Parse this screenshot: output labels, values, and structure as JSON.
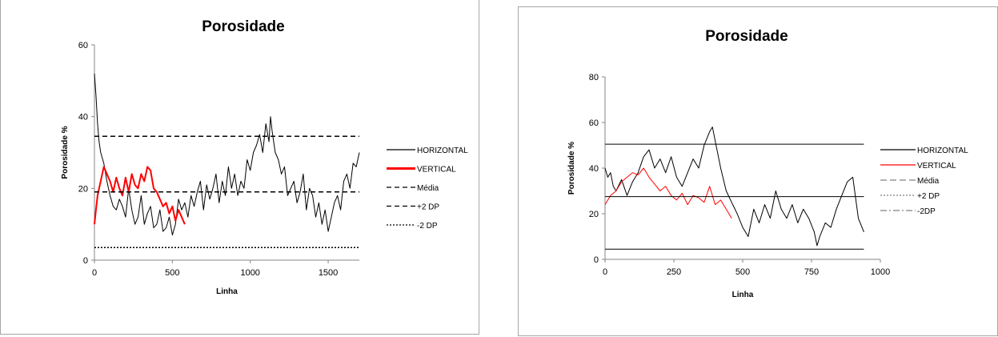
{
  "chart_data": [
    {
      "type": "line",
      "title": "Porosidade",
      "xlabel": "Linha",
      "ylabel": "Porosidade %",
      "xlim": [
        0,
        1700
      ],
      "ylim": [
        0,
        60
      ],
      "xticks": [
        "0",
        "500",
        "1000",
        "1500"
      ],
      "yticks": [
        "0",
        "20",
        "40",
        "60"
      ],
      "grid": false,
      "legend_position": "right",
      "series": [
        {
          "name": "HORIZONTAL",
          "color": "#000000",
          "dash": "solid",
          "width": 1,
          "x": [
            0,
            10,
            20,
            30,
            40,
            60,
            80,
            100,
            120,
            140,
            160,
            180,
            200,
            220,
            240,
            260,
            280,
            300,
            320,
            340,
            360,
            380,
            400,
            420,
            440,
            460,
            480,
            500,
            520,
            540,
            560,
            580,
            600,
            620,
            640,
            660,
            680,
            700,
            720,
            740,
            760,
            780,
            800,
            820,
            840,
            860,
            880,
            900,
            920,
            940,
            960,
            980,
            1000,
            1020,
            1040,
            1060,
            1080,
            1100,
            1120,
            1130,
            1140,
            1160,
            1180,
            1200,
            1220,
            1240,
            1260,
            1280,
            1300,
            1320,
            1340,
            1360,
            1380,
            1400,
            1420,
            1440,
            1460,
            1480,
            1500,
            1520,
            1540,
            1560,
            1580,
            1600,
            1620,
            1640,
            1660,
            1680,
            1700
          ],
          "y": [
            52,
            46,
            38,
            33,
            30,
            27,
            22,
            18,
            15,
            14,
            17,
            15,
            12,
            20,
            14,
            10,
            12,
            18,
            10,
            13,
            15,
            9,
            10,
            14,
            8,
            9,
            12,
            7,
            10,
            17,
            14,
            16,
            12,
            18,
            15,
            19,
            22,
            14,
            21,
            17,
            20,
            24,
            16,
            22,
            18,
            26,
            20,
            24,
            18,
            22,
            20,
            28,
            25,
            30,
            32,
            35,
            30,
            38,
            33,
            40,
            36,
            30,
            28,
            24,
            26,
            18,
            20,
            22,
            16,
            19,
            24,
            14,
            20,
            18,
            12,
            16,
            10,
            14,
            8,
            12,
            16,
            18,
            14,
            22,
            24,
            20,
            27,
            26,
            30
          ]
        },
        {
          "name": "VERTICAL",
          "color": "#ff0000",
          "dash": "solid",
          "width": 2,
          "x": [
            0,
            10,
            20,
            40,
            60,
            80,
            100,
            120,
            140,
            160,
            180,
            200,
            220,
            240,
            260,
            280,
            300,
            320,
            340,
            360,
            380,
            400,
            420,
            440,
            460,
            480,
            500,
            520,
            540,
            560,
            580
          ],
          "y": [
            10,
            14,
            18,
            22,
            26,
            24,
            22,
            19,
            23,
            20,
            18,
            23,
            19,
            24,
            21,
            20,
            24,
            22,
            26,
            25,
            20,
            19,
            17,
            15,
            16,
            13,
            15,
            11,
            14,
            12,
            10
          ]
        },
        {
          "name": "Média",
          "color": "#000000",
          "dash": "6,4",
          "width": 1.5,
          "x": [
            0,
            1700
          ],
          "y": [
            19,
            19
          ]
        },
        {
          "name": "+2 DP",
          "color": "#000000",
          "dash": "6,4",
          "width": 1.5,
          "x": [
            0,
            1700
          ],
          "y": [
            34.5,
            34.5
          ]
        },
        {
          "name": "-2 DP",
          "color": "#000000",
          "dash": "2,2",
          "width": 1.5,
          "x": [
            0,
            1700
          ],
          "y": [
            3.5,
            3.5
          ]
        }
      ]
    },
    {
      "type": "line",
      "title": "Porosidade",
      "xlabel": "Linha",
      "ylabel": "Porosidade %",
      "xlim": [
        0,
        1000
      ],
      "ylim": [
        0,
        80
      ],
      "xticks": [
        "0",
        "250",
        "500",
        "750",
        "1000"
      ],
      "yticks": [
        "0",
        "20",
        "40",
        "60",
        "80"
      ],
      "grid": false,
      "legend_position": "right",
      "series": [
        {
          "name": "HORIZONTAL",
          "color": "#000000",
          "dash": "solid",
          "width": 1,
          "x": [
            0,
            10,
            20,
            30,
            40,
            60,
            80,
            100,
            120,
            140,
            160,
            180,
            200,
            220,
            240,
            260,
            280,
            300,
            320,
            340,
            360,
            380,
            390,
            400,
            420,
            440,
            460,
            480,
            500,
            520,
            540,
            560,
            580,
            600,
            620,
            640,
            660,
            680,
            700,
            720,
            740,
            760,
            770,
            780,
            800,
            820,
            840,
            860,
            880,
            900,
            920,
            940
          ],
          "y": [
            40,
            36,
            38,
            32,
            30,
            35,
            28,
            34,
            38,
            45,
            48,
            40,
            44,
            38,
            45,
            36,
            32,
            38,
            44,
            40,
            50,
            56,
            58,
            52,
            40,
            30,
            25,
            20,
            14,
            10,
            22,
            16,
            24,
            18,
            30,
            22,
            18,
            24,
            16,
            22,
            18,
            12,
            6,
            10,
            16,
            14,
            22,
            28,
            34,
            36,
            18,
            12
          ]
        },
        {
          "name": "VERTICAL",
          "color": "#ff0000",
          "dash": "solid",
          "width": 1,
          "x": [
            0,
            20,
            40,
            60,
            80,
            100,
            120,
            140,
            160,
            180,
            200,
            220,
            240,
            260,
            280,
            300,
            320,
            340,
            360,
            380,
            400,
            420,
            440,
            460
          ],
          "y": [
            24,
            28,
            30,
            34,
            36,
            38,
            37,
            40,
            36,
            33,
            30,
            32,
            28,
            26,
            29,
            24,
            28,
            27,
            25,
            32,
            24,
            26,
            22,
            18
          ]
        },
        {
          "name": "Média",
          "color": "#000000",
          "dash": "solid",
          "width": 1,
          "x": [
            0,
            940
          ],
          "y": [
            27.5,
            27.5
          ]
        },
        {
          "name": "+2 DP",
          "color": "#000000",
          "dash": "solid",
          "width": 1,
          "x": [
            0,
            940
          ],
          "y": [
            50.5,
            50.5
          ]
        },
        {
          "name": "-2DP",
          "color": "#000000",
          "dash": "solid",
          "width": 1,
          "x": [
            0,
            940
          ],
          "y": [
            4.5,
            4.5
          ]
        }
      ],
      "legend_styles": [
        {
          "dash": "solid",
          "color": "#000000"
        },
        {
          "dash": "solid",
          "color": "#ff0000"
        },
        {
          "dash": "8,4",
          "color": "#808080"
        },
        {
          "dash": "2,2",
          "color": "#808080"
        },
        {
          "dash": "8,3,2,3",
          "color": "#808080"
        }
      ]
    }
  ]
}
